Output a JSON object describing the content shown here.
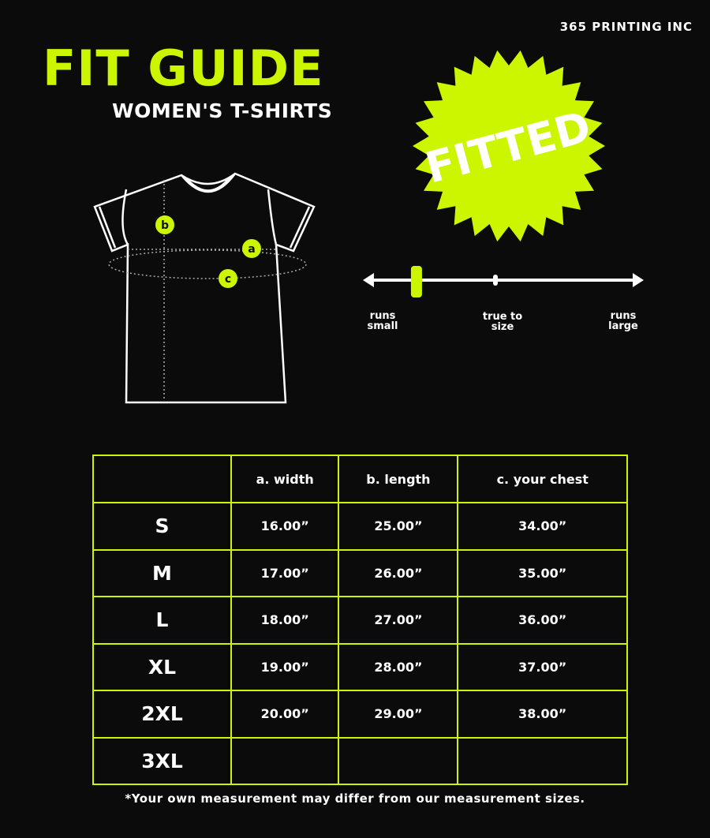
{
  "brand": "365 PRINTING INC",
  "title": "FIT GUIDE",
  "subtitle": "WOMEN'S T-SHIRTS",
  "badge": "FITTED",
  "colors": {
    "accent": "#ccf500",
    "background": "#0b0b0b",
    "text": "#ffffff"
  },
  "diagram_labels": {
    "a": "a",
    "b": "b",
    "c": "c"
  },
  "fit_scale": {
    "labels": {
      "left": [
        "runs",
        "small"
      ],
      "middle": [
        "true to",
        "size"
      ],
      "right": [
        "runs",
        "large"
      ]
    },
    "marker_position": 0.18
  },
  "table": {
    "headers": [
      "",
      "a. width",
      "b. length",
      "c. your chest"
    ],
    "rows": [
      [
        "S",
        "16.00”",
        "25.00”",
        "34.00”"
      ],
      [
        "M",
        "17.00”",
        "26.00”",
        "35.00”"
      ],
      [
        "L",
        "18.00”",
        "27.00”",
        "36.00”"
      ],
      [
        "XL",
        "19.00”",
        "28.00”",
        "37.00”"
      ],
      [
        "2XL",
        "20.00”",
        "29.00”",
        "38.00”"
      ],
      [
        "3XL",
        "",
        "",
        ""
      ]
    ]
  },
  "footnote": "*Your own measurement may differ from our measurement sizes."
}
